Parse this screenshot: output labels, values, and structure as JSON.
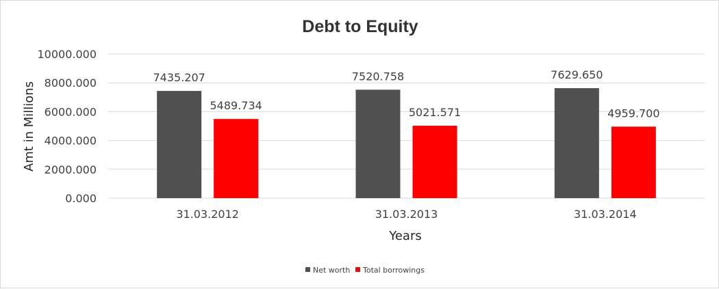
{
  "chart_data": {
    "type": "bar",
    "title": "Debt to Equity",
    "xlabel": "Years",
    "ylabel": "Amt in Millions",
    "categories": [
      "31.03.2012",
      "31.03.2013",
      "31.03.2014"
    ],
    "series": [
      {
        "name": "Net worth",
        "values": [
          7435.207,
          7520.758,
          7629.65
        ],
        "labels": [
          "7435.207",
          "7520.758",
          "7629.650"
        ],
        "color": "#505050"
      },
      {
        "name": "Total borrowings",
        "values": [
          5489.734,
          5021.571,
          4959.7
        ],
        "labels": [
          "5489.734",
          "5021.571",
          "4959.700"
        ],
        "color": "#ff0000"
      }
    ],
    "ylim": [
      0,
      10000
    ],
    "yticks": [
      "0.000",
      "2000.000",
      "4000.000",
      "6000.000",
      "8000.000",
      "10000.000"
    ],
    "grid": true,
    "legend_position": "bottom"
  }
}
